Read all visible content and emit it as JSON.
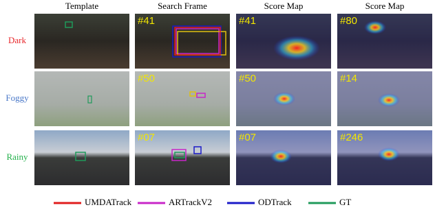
{
  "header": {
    "columns": [
      "Template",
      "Search Frame",
      "Score Map",
      "Score Map"
    ]
  },
  "rows": [
    {
      "label": "Dark",
      "color": "#e8262a",
      "frames": [
        "#41",
        "#41",
        "#80"
      ]
    },
    {
      "label": "Foggy",
      "color": "#4a78c8",
      "frames": [
        "#50",
        "#50",
        "#14"
      ]
    },
    {
      "label": "Rainy",
      "color": "#22b04a",
      "frames": [
        "#07",
        "#07",
        "#246"
      ]
    }
  ],
  "legend": [
    {
      "name": "UMDATrack",
      "color": "#e01c1c"
    },
    {
      "name": "ARTrackV2",
      "color": "#c826c8"
    },
    {
      "name": "ODTrack",
      "color": "#1a1ac8"
    },
    {
      "name": "GT",
      "color": "#1f9a5a"
    }
  ]
}
